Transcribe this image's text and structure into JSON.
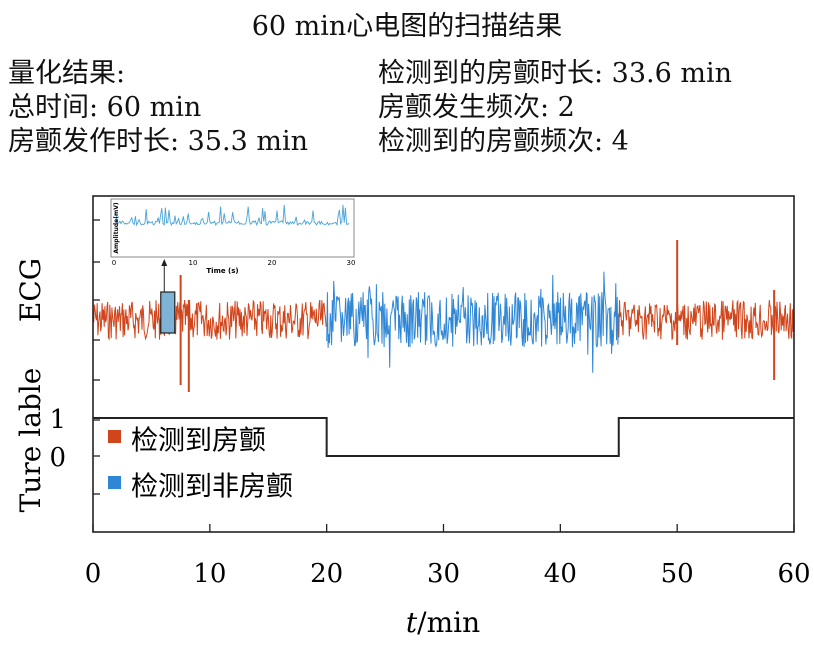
{
  "title": "60 min心电图的扫描结果",
  "summary": {
    "left": [
      "量化结果:",
      "总时间: 60 min",
      "房颤发作时长: 35.3 min"
    ],
    "right": [
      "检测到的房颤时长: 33.6 min",
      "房颤发生频次: 2",
      "检测到的房颤频次: 4"
    ]
  },
  "chart_data": {
    "type": "line",
    "panels": [
      "ECG",
      "Ture lable"
    ],
    "xlabel_italic": "t",
    "xlabel_rest": "/min",
    "xlim": [
      0,
      60
    ],
    "xticks": [
      0,
      10,
      20,
      30,
      40,
      50,
      60
    ],
    "ecg_segments": [
      {
        "from": 0,
        "to": 20,
        "class": "检测到房颤",
        "color": "#d0451b"
      },
      {
        "from": 20,
        "to": 45,
        "class": "检测到非房颤",
        "color": "#2e86d6"
      },
      {
        "from": 45,
        "to": 60,
        "class": "检测到房颤",
        "color": "#d0451b"
      }
    ],
    "true_label": {
      "yticks": [
        1,
        0
      ],
      "steps": [
        {
          "from": 0,
          "to": 20,
          "value": 1
        },
        {
          "from": 20,
          "to": 45,
          "value": 0
        },
        {
          "from": 45,
          "to": 60,
          "value": 1
        }
      ]
    },
    "legend": [
      {
        "label": "检测到房颤",
        "color": "#d0451b"
      },
      {
        "label": "检测到非房颤",
        "color": "#2e86d6"
      }
    ],
    "inset": {
      "ylabel": "Amplitude(mV)",
      "xlabel": "Time (s)",
      "xticks": [
        0,
        10,
        20,
        30
      ]
    }
  }
}
